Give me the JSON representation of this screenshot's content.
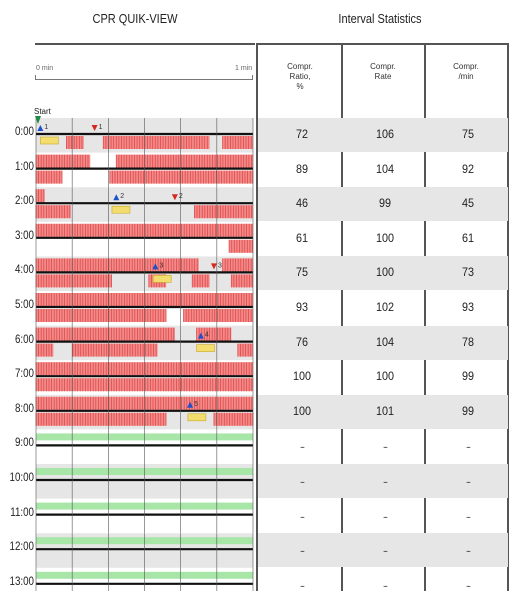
{
  "left_panel": {
    "title": "CPR QUIK-VIEW",
    "ruler_start": "0 min",
    "ruler_end": "1 min",
    "start_label": "Start"
  },
  "right_panel": {
    "title": "Interval Statistics",
    "columns": [
      {
        "lines": [
          "Compr.",
          "Ratio,",
          "%"
        ]
      },
      {
        "lines": [
          "Compr.",
          "Rate"
        ]
      },
      {
        "lines": [
          "Compr.",
          "/min"
        ]
      }
    ]
  },
  "rows": [
    {
      "time": "0:00",
      "ratio": "72",
      "rate": "106",
      "per_min": "75"
    },
    {
      "time": "1:00",
      "ratio": "89",
      "rate": "104",
      "per_min": "92"
    },
    {
      "time": "2:00",
      "ratio": "46",
      "rate": "99",
      "per_min": "45"
    },
    {
      "time": "3:00",
      "ratio": "61",
      "rate": "100",
      "per_min": "61"
    },
    {
      "time": "4:00",
      "ratio": "75",
      "rate": "100",
      "per_min": "73"
    },
    {
      "time": "5:00",
      "ratio": "93",
      "rate": "102",
      "per_min": "93"
    },
    {
      "time": "6:00",
      "ratio": "76",
      "rate": "104",
      "per_min": "78"
    },
    {
      "time": "7:00",
      "ratio": "100",
      "rate": "100",
      "per_min": "99"
    },
    {
      "time": "8:00",
      "ratio": "100",
      "rate": "101",
      "per_min": "99"
    },
    {
      "time": "9:00",
      "ratio": "--",
      "rate": "--",
      "per_min": "--"
    },
    {
      "time": "10:00",
      "ratio": "--",
      "rate": "--",
      "per_min": "--"
    },
    {
      "time": "11:00",
      "ratio": "--",
      "rate": "--",
      "per_min": "--"
    },
    {
      "time": "12:00",
      "ratio": "--",
      "rate": "--",
      "per_min": "--"
    },
    {
      "time": "13:00",
      "ratio": "--",
      "rate": "--",
      "per_min": "--"
    }
  ],
  "markers": [
    {
      "kind": "blue",
      "label": "1"
    },
    {
      "kind": "red",
      "label": "1"
    },
    {
      "kind": "blue",
      "label": "2"
    },
    {
      "kind": "red",
      "label": "2"
    },
    {
      "kind": "blue",
      "label": "3"
    },
    {
      "kind": "red",
      "label": "3"
    },
    {
      "kind": "blue",
      "label": "4"
    },
    {
      "kind": "blue",
      "label": "5"
    }
  ],
  "colors": {
    "compression": "#f28a8a",
    "shock_pad": "#f2dd6e",
    "idle_band": "#a8e6a8",
    "row_shade": "#e6e6e6",
    "marker_blue": "#1f4fc9",
    "marker_red": "#d6281e"
  }
}
